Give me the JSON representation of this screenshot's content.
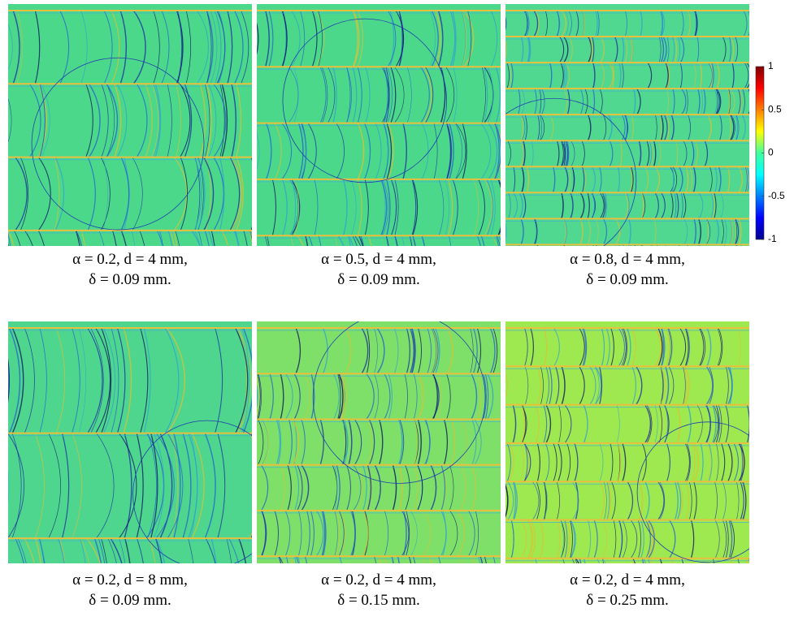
{
  "panels": [
    {
      "caption_line1": "α = 0.2, d = 4 mm,",
      "caption_line2": "δ = 0.09 mm."
    },
    {
      "caption_line1": "α = 0.5, d = 4 mm,",
      "caption_line2": "δ = 0.09 mm."
    },
    {
      "caption_line1": "α = 0.8, d = 4 mm,",
      "caption_line2": "δ = 0.09 mm."
    },
    {
      "caption_line1": "α = 0.2, d = 8 mm,",
      "caption_line2": "δ = 0.09 mm."
    },
    {
      "caption_line1": "α = 0.2, d = 4 mm,",
      "caption_line2": "δ = 0.15 mm."
    },
    {
      "caption_line1": "α = 0.2, d = 4 mm,",
      "caption_line2": "δ = 0.25 mm."
    }
  ],
  "colorbar": {
    "ticks": [
      1,
      0.5,
      0,
      -0.5,
      -1
    ]
  }
}
